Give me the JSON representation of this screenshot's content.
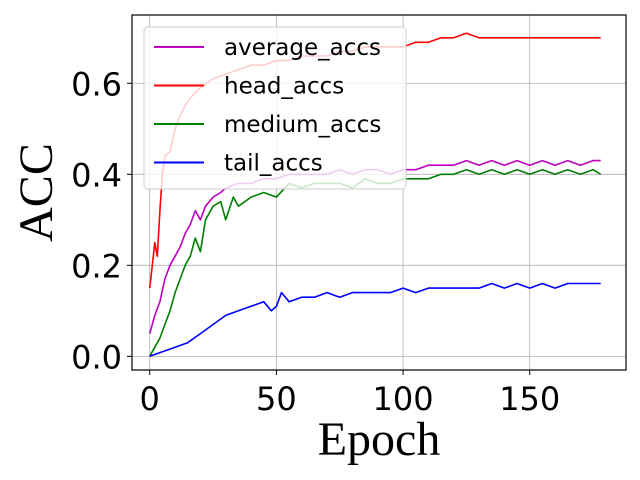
{
  "chart_data": {
    "type": "line",
    "xlabel": "Epoch",
    "ylabel": "ACC",
    "xlim": [
      -7,
      188
    ],
    "ylim": [
      -0.03,
      0.75
    ],
    "xticks": [
      0,
      50,
      100,
      150
    ],
    "yticks": [
      0.0,
      0.2,
      0.4,
      0.6
    ],
    "xtick_labels": [
      "0",
      "50",
      "100",
      "150"
    ],
    "ytick_labels": [
      "0.0",
      "0.2",
      "0.4",
      "0.6"
    ],
    "grid": true,
    "legend_position": "top-left",
    "series": [
      {
        "name": "average_accs",
        "color": "#bf00bf",
        "points": [
          [
            0,
            0.05
          ],
          [
            2,
            0.09
          ],
          [
            4,
            0.12
          ],
          [
            6,
            0.17
          ],
          [
            8,
            0.2
          ],
          [
            10,
            0.22
          ],
          [
            12,
            0.24
          ],
          [
            14,
            0.27
          ],
          [
            16,
            0.29
          ],
          [
            18,
            0.32
          ],
          [
            20,
            0.3
          ],
          [
            22,
            0.33
          ],
          [
            25,
            0.35
          ],
          [
            28,
            0.36
          ],
          [
            30,
            0.37
          ],
          [
            35,
            0.38
          ],
          [
            40,
            0.38
          ],
          [
            45,
            0.39
          ],
          [
            50,
            0.39
          ],
          [
            55,
            0.4
          ],
          [
            60,
            0.4
          ],
          [
            65,
            0.4
          ],
          [
            70,
            0.4
          ],
          [
            75,
            0.41
          ],
          [
            80,
            0.4
          ],
          [
            85,
            0.41
          ],
          [
            90,
            0.41
          ],
          [
            95,
            0.4
          ],
          [
            100,
            0.41
          ],
          [
            105,
            0.41
          ],
          [
            110,
            0.42
          ],
          [
            115,
            0.42
          ],
          [
            120,
            0.42
          ],
          [
            125,
            0.43
          ],
          [
            130,
            0.42
          ],
          [
            135,
            0.43
          ],
          [
            140,
            0.42
          ],
          [
            145,
            0.43
          ],
          [
            150,
            0.42
          ],
          [
            155,
            0.43
          ],
          [
            160,
            0.42
          ],
          [
            165,
            0.43
          ],
          [
            170,
            0.42
          ],
          [
            175,
            0.43
          ],
          [
            178,
            0.43
          ]
        ]
      },
      {
        "name": "head_accs",
        "color": "#ff0000",
        "points": [
          [
            0,
            0.15
          ],
          [
            1,
            0.2
          ],
          [
            2,
            0.25
          ],
          [
            3,
            0.22
          ],
          [
            4,
            0.32
          ],
          [
            5,
            0.4
          ],
          [
            6,
            0.44
          ],
          [
            8,
            0.45
          ],
          [
            10,
            0.5
          ],
          [
            12,
            0.53
          ],
          [
            15,
            0.56
          ],
          [
            18,
            0.58
          ],
          [
            20,
            0.59
          ],
          [
            25,
            0.61
          ],
          [
            30,
            0.62
          ],
          [
            35,
            0.63
          ],
          [
            40,
            0.64
          ],
          [
            45,
            0.64
          ],
          [
            50,
            0.65
          ],
          [
            55,
            0.65
          ],
          [
            60,
            0.66
          ],
          [
            65,
            0.66
          ],
          [
            70,
            0.66
          ],
          [
            75,
            0.67
          ],
          [
            80,
            0.67
          ],
          [
            85,
            0.68
          ],
          [
            90,
            0.68
          ],
          [
            95,
            0.68
          ],
          [
            100,
            0.68
          ],
          [
            105,
            0.69
          ],
          [
            110,
            0.69
          ],
          [
            115,
            0.7
          ],
          [
            120,
            0.7
          ],
          [
            125,
            0.71
          ],
          [
            130,
            0.7
          ],
          [
            135,
            0.7
          ],
          [
            140,
            0.7
          ],
          [
            145,
            0.7
          ],
          [
            150,
            0.7
          ],
          [
            155,
            0.7
          ],
          [
            160,
            0.7
          ],
          [
            165,
            0.7
          ],
          [
            170,
            0.7
          ],
          [
            175,
            0.7
          ],
          [
            178,
            0.7
          ]
        ]
      },
      {
        "name": "medium_accs",
        "color": "#008000",
        "points": [
          [
            0,
            0.0
          ],
          [
            2,
            0.02
          ],
          [
            4,
            0.04
          ],
          [
            6,
            0.07
          ],
          [
            8,
            0.1
          ],
          [
            10,
            0.14
          ],
          [
            12,
            0.17
          ],
          [
            14,
            0.2
          ],
          [
            16,
            0.22
          ],
          [
            18,
            0.26
          ],
          [
            20,
            0.23
          ],
          [
            22,
            0.3
          ],
          [
            25,
            0.33
          ],
          [
            28,
            0.34
          ],
          [
            30,
            0.3
          ],
          [
            33,
            0.35
          ],
          [
            35,
            0.33
          ],
          [
            40,
            0.35
          ],
          [
            45,
            0.36
          ],
          [
            50,
            0.35
          ],
          [
            55,
            0.38
          ],
          [
            60,
            0.37
          ],
          [
            65,
            0.38
          ],
          [
            70,
            0.38
          ],
          [
            75,
            0.38
          ],
          [
            80,
            0.37
          ],
          [
            85,
            0.39
          ],
          [
            90,
            0.38
          ],
          [
            95,
            0.38
          ],
          [
            100,
            0.39
          ],
          [
            105,
            0.39
          ],
          [
            110,
            0.39
          ],
          [
            115,
            0.4
          ],
          [
            120,
            0.4
          ],
          [
            125,
            0.41
          ],
          [
            130,
            0.4
          ],
          [
            135,
            0.41
          ],
          [
            140,
            0.4
          ],
          [
            145,
            0.41
          ],
          [
            150,
            0.4
          ],
          [
            155,
            0.41
          ],
          [
            160,
            0.4
          ],
          [
            165,
            0.41
          ],
          [
            170,
            0.4
          ],
          [
            175,
            0.41
          ],
          [
            178,
            0.4
          ]
        ]
      },
      {
        "name": "tail_accs",
        "color": "#0000ff",
        "points": [
          [
            0,
            0.0
          ],
          [
            5,
            0.01
          ],
          [
            10,
            0.02
          ],
          [
            15,
            0.03
          ],
          [
            20,
            0.05
          ],
          [
            25,
            0.07
          ],
          [
            30,
            0.09
          ],
          [
            35,
            0.1
          ],
          [
            40,
            0.11
          ],
          [
            45,
            0.12
          ],
          [
            48,
            0.1
          ],
          [
            50,
            0.11
          ],
          [
            52,
            0.14
          ],
          [
            55,
            0.12
          ],
          [
            60,
            0.13
          ],
          [
            65,
            0.13
          ],
          [
            70,
            0.14
          ],
          [
            75,
            0.13
          ],
          [
            80,
            0.14
          ],
          [
            85,
            0.14
          ],
          [
            90,
            0.14
          ],
          [
            95,
            0.14
          ],
          [
            100,
            0.15
          ],
          [
            105,
            0.14
          ],
          [
            110,
            0.15
          ],
          [
            115,
            0.15
          ],
          [
            120,
            0.15
          ],
          [
            125,
            0.15
          ],
          [
            130,
            0.15
          ],
          [
            135,
            0.16
          ],
          [
            140,
            0.15
          ],
          [
            145,
            0.16
          ],
          [
            150,
            0.15
          ],
          [
            155,
            0.16
          ],
          [
            160,
            0.15
          ],
          [
            165,
            0.16
          ],
          [
            170,
            0.16
          ],
          [
            175,
            0.16
          ],
          [
            178,
            0.16
          ]
        ]
      }
    ]
  }
}
